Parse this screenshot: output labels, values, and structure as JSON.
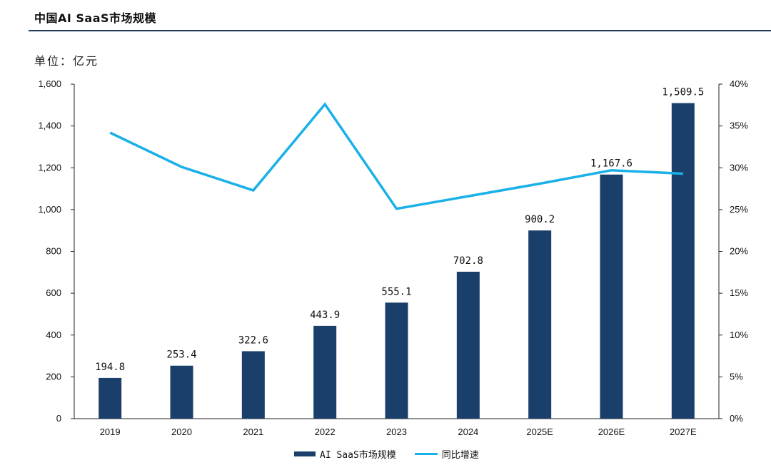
{
  "header": {
    "title": "中国AI SaaS市场规模"
  },
  "unit_label": "单位：亿元",
  "colors": {
    "bar": "#1b3f6b",
    "line": "#1ab0e8",
    "rule": "#1f3a5c"
  },
  "legend": {
    "bar_label": "AI SaaS市场规模",
    "line_label": "同比增速"
  },
  "chart_data": {
    "type": "bar",
    "categories": [
      "2019",
      "2020",
      "2021",
      "2022",
      "2023",
      "2024",
      "2025E",
      "2026E",
      "2027E"
    ],
    "series": [
      {
        "name": "AI SaaS市场规模",
        "type": "bar",
        "axis": "left",
        "values": [
          194.8,
          253.4,
          322.6,
          443.9,
          555.1,
          702.8,
          900.2,
          1167.6,
          1509.5
        ],
        "labels": [
          "194.8",
          "253.4",
          "322.6",
          "443.9",
          "555.1",
          "702.8",
          "900.2",
          "1,167.6",
          "1,509.5"
        ]
      },
      {
        "name": "同比增速",
        "type": "line",
        "axis": "right",
        "values": [
          34.2,
          30.1,
          27.3,
          37.6,
          25.1,
          26.6,
          28.1,
          29.7,
          29.3
        ]
      }
    ],
    "ylim": [
      0,
      1600
    ],
    "yticks": [
      "0",
      "200",
      "400",
      "600",
      "800",
      "1,000",
      "1,200",
      "1,400",
      "1,600"
    ],
    "y2lim": [
      0,
      40
    ],
    "y2ticks": [
      "0%",
      "5%",
      "10%",
      "15%",
      "20%",
      "25%",
      "30%",
      "35%",
      "40%"
    ],
    "legend_position": "bottom"
  }
}
